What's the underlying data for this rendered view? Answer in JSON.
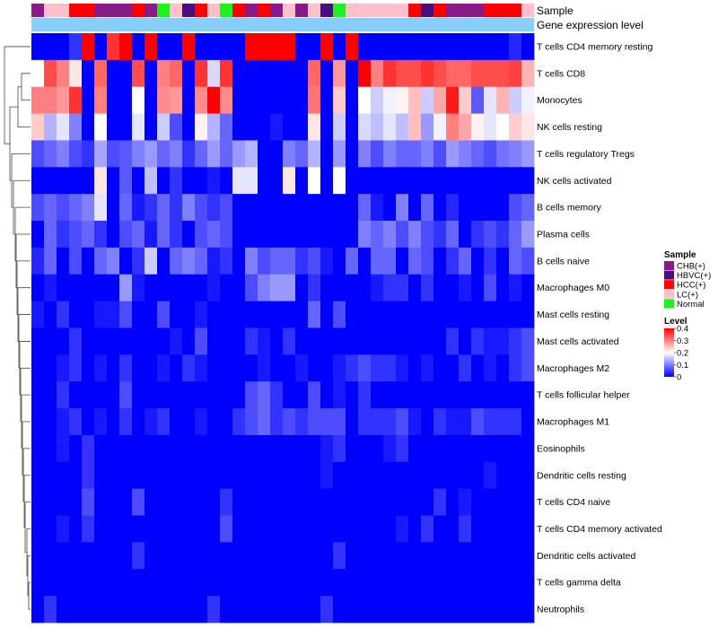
{
  "chart_data": {
    "type": "heatmap",
    "title": "",
    "annotation_tracks": [
      {
        "name": "Sample",
        "type": "categorical"
      },
      {
        "name": "Gene expression level",
        "type": "constant",
        "color": "#87CEFA"
      }
    ],
    "sample_groups": [
      {
        "label": "CHB(+)",
        "color": "#8B1A89"
      },
      {
        "label": "HBVC(+)",
        "color": "#4B0C7C"
      },
      {
        "label": "HCC(+)",
        "color": "#FF0000"
      },
      {
        "label": "LC(+)",
        "color": "#FFC0CB"
      },
      {
        "label": "Normal",
        "color": "#22EE22"
      }
    ],
    "sample_annotation": [
      "CHB(+)",
      "LC(+)",
      "LC(+)",
      "HCC(+)",
      "HCC(+)",
      "CHB(+)",
      "CHB(+)",
      "CHB(+)",
      "HCC(+)",
      "CHB(+)",
      "Normal",
      "LC(+)",
      "HBVC(+)",
      "HCC(+)",
      "LC(+)",
      "Normal",
      "HCC(+)",
      "CHB(+)",
      "HCC(+)",
      "CHB(+)",
      "LC(+)",
      "CHB(+)",
      "LC(+)",
      "HBVC(+)",
      "Normal",
      "LC(+)",
      "LC(+)",
      "LC(+)",
      "LC(+)",
      "LC(+)",
      "HCC(+)",
      "HBVC(+)",
      "HCC(+)",
      "CHB(+)",
      "CHB(+)",
      "CHB(+)",
      "HCC(+)",
      "HCC(+)",
      "HCC(+)",
      "LC(+)"
    ],
    "rows": [
      "T cells CD4 memory resting",
      "T cells CD8",
      "Monocytes",
      "NK cells resting",
      "T cells regulatory  Tregs",
      "NK cells activated",
      "B cells memory",
      "Plasma cells",
      "B cells naive",
      "Macrophages M0",
      "Mast cells resting",
      "Mast cells activated",
      "Macrophages M2",
      "T cells follicular helper",
      "Macrophages M1",
      "Eosinophils",
      "Dendritic cells resting",
      "T cells CD4 naive",
      "T cells CD4 memory activated",
      "Dendritic cells activated",
      "T cells gamma delta",
      "Neutrophils"
    ],
    "values": [
      [
        0.0,
        0.0,
        0.0,
        0.04,
        0.4,
        0.0,
        0.36,
        0.4,
        0.0,
        0.4,
        0.0,
        0.0,
        0.4,
        0.0,
        0.0,
        0.0,
        0.0,
        0.4,
        0.4,
        0.4,
        0.4,
        0.0,
        0.0,
        0.4,
        0.0,
        0.4,
        0.0,
        0.0,
        0.0,
        0.0,
        0.0,
        0.0,
        0.0,
        0.0,
        0.0,
        0.0,
        0.0,
        0.0,
        0.03,
        0.0
      ],
      [
        0.2,
        0.34,
        0.3,
        0.22,
        0.0,
        0.32,
        0.0,
        0.0,
        0.34,
        0.0,
        0.3,
        0.32,
        0.0,
        0.36,
        0.17,
        0.36,
        0.0,
        0.0,
        0.0,
        0.0,
        0.0,
        0.0,
        0.32,
        0.0,
        0.28,
        0.0,
        0.4,
        0.3,
        0.36,
        0.34,
        0.34,
        0.36,
        0.34,
        0.32,
        0.32,
        0.34,
        0.34,
        0.34,
        0.35,
        0.26
      ],
      [
        0.3,
        0.3,
        0.28,
        0.36,
        0.0,
        0.3,
        0.0,
        0.0,
        0.2,
        0.0,
        0.29,
        0.28,
        0.0,
        0.29,
        0.4,
        0.29,
        0.0,
        0.0,
        0.0,
        0.0,
        0.0,
        0.0,
        0.31,
        0.0,
        0.24,
        0.0,
        0.2,
        0.16,
        0.19,
        0.21,
        0.25,
        0.16,
        0.27,
        0.38,
        0.24,
        0.07,
        0.18,
        0.26,
        0.16,
        0.19
      ],
      [
        0.24,
        0.14,
        0.18,
        0.1,
        0.0,
        0.2,
        0.0,
        0.0,
        0.18,
        0.0,
        0.16,
        0.06,
        0.0,
        0.21,
        0.14,
        0.08,
        0.0,
        0.0,
        0.0,
        0.02,
        0.0,
        0.0,
        0.22,
        0.0,
        0.16,
        0.0,
        0.17,
        0.15,
        0.18,
        0.15,
        0.25,
        0.12,
        0.19,
        0.3,
        0.27,
        0.21,
        0.18,
        0.2,
        0.24,
        0.22
      ],
      [
        0.06,
        0.08,
        0.1,
        0.06,
        0.04,
        0.13,
        0.06,
        0.07,
        0.1,
        0.12,
        0.08,
        0.1,
        0.04,
        0.08,
        0.12,
        0.08,
        0.12,
        0.14,
        0.0,
        0.0,
        0.1,
        0.08,
        0.14,
        0.0,
        0.12,
        0.0,
        0.1,
        0.06,
        0.1,
        0.08,
        0.08,
        0.1,
        0.06,
        0.12,
        0.1,
        0.08,
        0.06,
        0.09,
        0.1,
        0.12
      ],
      [
        0.0,
        0.0,
        0.0,
        0.0,
        0.0,
        0.22,
        0.0,
        0.07,
        0.0,
        0.15,
        0.0,
        0.04,
        0.0,
        0.0,
        0.02,
        0.0,
        0.18,
        0.18,
        0.0,
        0.0,
        0.22,
        0.0,
        0.2,
        0.0,
        0.2,
        0.0,
        0.0,
        0.0,
        0.0,
        0.0,
        0.0,
        0.0,
        0.0,
        0.0,
        0.0,
        0.0,
        0.0,
        0.0,
        0.0,
        0.0
      ],
      [
        0.06,
        0.08,
        0.06,
        0.08,
        0.1,
        0.18,
        0.0,
        0.08,
        0.02,
        0.04,
        0.08,
        0.04,
        0.1,
        0.06,
        0.04,
        0.06,
        0.0,
        0.0,
        0.0,
        0.0,
        0.0,
        0.0,
        0.0,
        0.0,
        0.0,
        0.0,
        0.08,
        0.02,
        0.0,
        0.1,
        0.0,
        0.08,
        0.0,
        0.03,
        0.0,
        0.0,
        0.0,
        0.0,
        0.06,
        0.08
      ],
      [
        0.0,
        0.08,
        0.04,
        0.06,
        0.08,
        0.04,
        0.0,
        0.06,
        0.08,
        0.02,
        0.08,
        0.04,
        0.0,
        0.06,
        0.08,
        0.06,
        0.0,
        0.0,
        0.0,
        0.0,
        0.0,
        0.0,
        0.0,
        0.0,
        0.0,
        0.0,
        0.1,
        0.08,
        0.1,
        0.06,
        0.1,
        0.06,
        0.04,
        0.08,
        0.0,
        0.04,
        0.06,
        0.04,
        0.08,
        0.12
      ],
      [
        0.03,
        0.08,
        0.0,
        0.06,
        0.0,
        0.08,
        0.1,
        0.0,
        0.04,
        0.16,
        0.0,
        0.08,
        0.1,
        0.08,
        0.02,
        0.04,
        0.0,
        0.1,
        0.06,
        0.08,
        0.08,
        0.04,
        0.06,
        0.02,
        0.0,
        0.08,
        0.0,
        0.08,
        0.08,
        0.0,
        0.08,
        0.06,
        0.0,
        0.04,
        0.08,
        0.0,
        0.04,
        0.0,
        0.08,
        0.06
      ],
      [
        0.0,
        0.02,
        0.0,
        0.0,
        0.0,
        0.0,
        0.0,
        0.12,
        0.02,
        0.0,
        0.0,
        0.0,
        0.0,
        0.0,
        0.02,
        0.0,
        0.0,
        0.06,
        0.1,
        0.12,
        0.12,
        0.0,
        0.04,
        0.0,
        0.0,
        0.0,
        0.0,
        0.02,
        0.04,
        0.04,
        0.0,
        0.04,
        0.0,
        0.0,
        0.02,
        0.0,
        0.06,
        0.0,
        0.02,
        0.0
      ],
      [
        0.02,
        0.0,
        0.04,
        0.0,
        0.0,
        0.02,
        0.02,
        0.06,
        0.0,
        0.0,
        0.06,
        0.0,
        0.0,
        0.02,
        0.0,
        0.0,
        0.0,
        0.0,
        0.0,
        0.0,
        0.0,
        0.0,
        0.08,
        0.0,
        0.06,
        0.0,
        0.0,
        0.0,
        0.0,
        0.0,
        0.0,
        0.0,
        0.0,
        0.0,
        0.0,
        0.0,
        0.0,
        0.0,
        0.0,
        0.0
      ],
      [
        0.0,
        0.0,
        0.0,
        0.04,
        0.0,
        0.0,
        0.0,
        0.0,
        0.0,
        0.0,
        0.0,
        0.02,
        0.0,
        0.06,
        0.0,
        0.0,
        0.0,
        0.04,
        0.02,
        0.0,
        0.04,
        0.0,
        0.0,
        0.0,
        0.0,
        0.0,
        0.0,
        0.0,
        0.0,
        0.0,
        0.0,
        0.0,
        0.0,
        0.04,
        0.0,
        0.04,
        0.02,
        0.02,
        0.04,
        0.06
      ],
      [
        0.0,
        0.0,
        0.02,
        0.04,
        0.0,
        0.02,
        0.0,
        0.04,
        0.0,
        0.0,
        0.02,
        0.0,
        0.04,
        0.02,
        0.0,
        0.0,
        0.0,
        0.0,
        0.02,
        0.0,
        0.0,
        0.02,
        0.0,
        0.0,
        0.02,
        0.04,
        0.06,
        0.04,
        0.04,
        0.02,
        0.0,
        0.02,
        0.0,
        0.0,
        0.04,
        0.0,
        0.02,
        0.0,
        0.04,
        0.06
      ],
      [
        0.0,
        0.0,
        0.04,
        0.0,
        0.0,
        0.0,
        0.0,
        0.06,
        0.0,
        0.0,
        0.0,
        0.0,
        0.0,
        0.0,
        0.0,
        0.0,
        0.0,
        0.06,
        0.08,
        0.04,
        0.0,
        0.0,
        0.06,
        0.0,
        0.02,
        0.0,
        0.04,
        0.0,
        0.0,
        0.0,
        0.0,
        0.0,
        0.0,
        0.0,
        0.0,
        0.0,
        0.0,
        0.0,
        0.0,
        0.0
      ],
      [
        0.0,
        0.0,
        0.02,
        0.04,
        0.0,
        0.02,
        0.0,
        0.04,
        0.0,
        0.02,
        0.04,
        0.0,
        0.0,
        0.02,
        0.0,
        0.0,
        0.04,
        0.06,
        0.08,
        0.04,
        0.06,
        0.04,
        0.06,
        0.06,
        0.06,
        0.0,
        0.04,
        0.04,
        0.04,
        0.06,
        0.02,
        0.0,
        0.04,
        0.02,
        0.02,
        0.06,
        0.04,
        0.04,
        0.04,
        0.0
      ],
      [
        0.0,
        0.0,
        0.02,
        0.0,
        0.04,
        0.0,
        0.0,
        0.0,
        0.0,
        0.0,
        0.0,
        0.0,
        0.0,
        0.0,
        0.0,
        0.0,
        0.0,
        0.0,
        0.0,
        0.0,
        0.0,
        0.0,
        0.0,
        0.02,
        0.04,
        0.0,
        0.0,
        0.0,
        0.02,
        0.04,
        0.0,
        0.0,
        0.0,
        0.0,
        0.0,
        0.0,
        0.0,
        0.0,
        0.0,
        0.0
      ],
      [
        0.0,
        0.0,
        0.0,
        0.0,
        0.04,
        0.0,
        0.0,
        0.0,
        0.0,
        0.0,
        0.0,
        0.0,
        0.0,
        0.0,
        0.0,
        0.0,
        0.0,
        0.0,
        0.0,
        0.0,
        0.0,
        0.0,
        0.0,
        0.02,
        0.0,
        0.0,
        0.0,
        0.0,
        0.0,
        0.0,
        0.0,
        0.0,
        0.0,
        0.0,
        0.0,
        0.0,
        0.02,
        0.0,
        0.0,
        0.0
      ],
      [
        0.0,
        0.0,
        0.0,
        0.0,
        0.06,
        0.0,
        0.0,
        0.0,
        0.06,
        0.0,
        0.0,
        0.0,
        0.0,
        0.0,
        0.0,
        0.04,
        0.0,
        0.0,
        0.0,
        0.0,
        0.0,
        0.0,
        0.0,
        0.0,
        0.0,
        0.0,
        0.0,
        0.0,
        0.0,
        0.0,
        0.0,
        0.0,
        0.04,
        0.0,
        0.02,
        0.0,
        0.0,
        0.0,
        0.0,
        0.0
      ],
      [
        0.0,
        0.0,
        0.02,
        0.0,
        0.04,
        0.0,
        0.0,
        0.0,
        0.0,
        0.0,
        0.0,
        0.0,
        0.0,
        0.0,
        0.0,
        0.06,
        0.0,
        0.0,
        0.0,
        0.0,
        0.0,
        0.0,
        0.0,
        0.0,
        0.0,
        0.0,
        0.0,
        0.0,
        0.0,
        0.02,
        0.0,
        0.04,
        0.0,
        0.0,
        0.04,
        0.0,
        0.0,
        0.0,
        0.0,
        0.0
      ],
      [
        0.0,
        0.0,
        0.0,
        0.0,
        0.0,
        0.0,
        0.0,
        0.0,
        0.04,
        0.0,
        0.0,
        0.0,
        0.0,
        0.0,
        0.0,
        0.0,
        0.0,
        0.0,
        0.0,
        0.0,
        0.0,
        0.0,
        0.0,
        0.0,
        0.04,
        0.0,
        0.0,
        0.0,
        0.0,
        0.0,
        0.0,
        0.0,
        0.0,
        0.0,
        0.0,
        0.0,
        0.0,
        0.0,
        0.0,
        0.0
      ],
      [
        0.0,
        0.0,
        0.0,
        0.0,
        0.0,
        0.0,
        0.0,
        0.0,
        0.0,
        0.0,
        0.0,
        0.0,
        0.0,
        0.0,
        0.0,
        0.0,
        0.0,
        0.0,
        0.0,
        0.0,
        0.0,
        0.0,
        0.0,
        0.0,
        0.0,
        0.0,
        0.0,
        0.0,
        0.0,
        0.0,
        0.0,
        0.0,
        0.0,
        0.0,
        0.0,
        0.0,
        0.0,
        0.0,
        0.0,
        0.0
      ],
      [
        0.0,
        0.04,
        0.0,
        0.0,
        0.0,
        0.0,
        0.0,
        0.0,
        0.0,
        0.0,
        0.0,
        0.0,
        0.0,
        0.0,
        0.04,
        0.0,
        0.0,
        0.0,
        0.0,
        0.0,
        0.0,
        0.0,
        0.0,
        0.04,
        0.0,
        0.0,
        0.0,
        0.0,
        0.0,
        0.0,
        0.0,
        0.0,
        0.0,
        0.0,
        0.0,
        0.0,
        0.0,
        0.0,
        0.0,
        0.0
      ]
    ],
    "color_scale": {
      "stops": [
        {
          "value": 0.0,
          "color": "#0000FF"
        },
        {
          "value": 0.2,
          "color": "#FFFFFF"
        },
        {
          "value": 0.4,
          "color": "#FF0000"
        }
      ]
    },
    "legend": {
      "sample_title": "Sample",
      "level_title": "Level",
      "level_ticks": [
        {
          "value": 0.4,
          "label": "0.4"
        },
        {
          "value": 0.3,
          "label": "0.3"
        },
        {
          "value": 0.2,
          "label": "0.2"
        },
        {
          "value": 0.1,
          "label": "0.1"
        },
        {
          "value": 0.0,
          "label": "0"
        }
      ],
      "placement": "right"
    },
    "dendrogram": "rows"
  }
}
